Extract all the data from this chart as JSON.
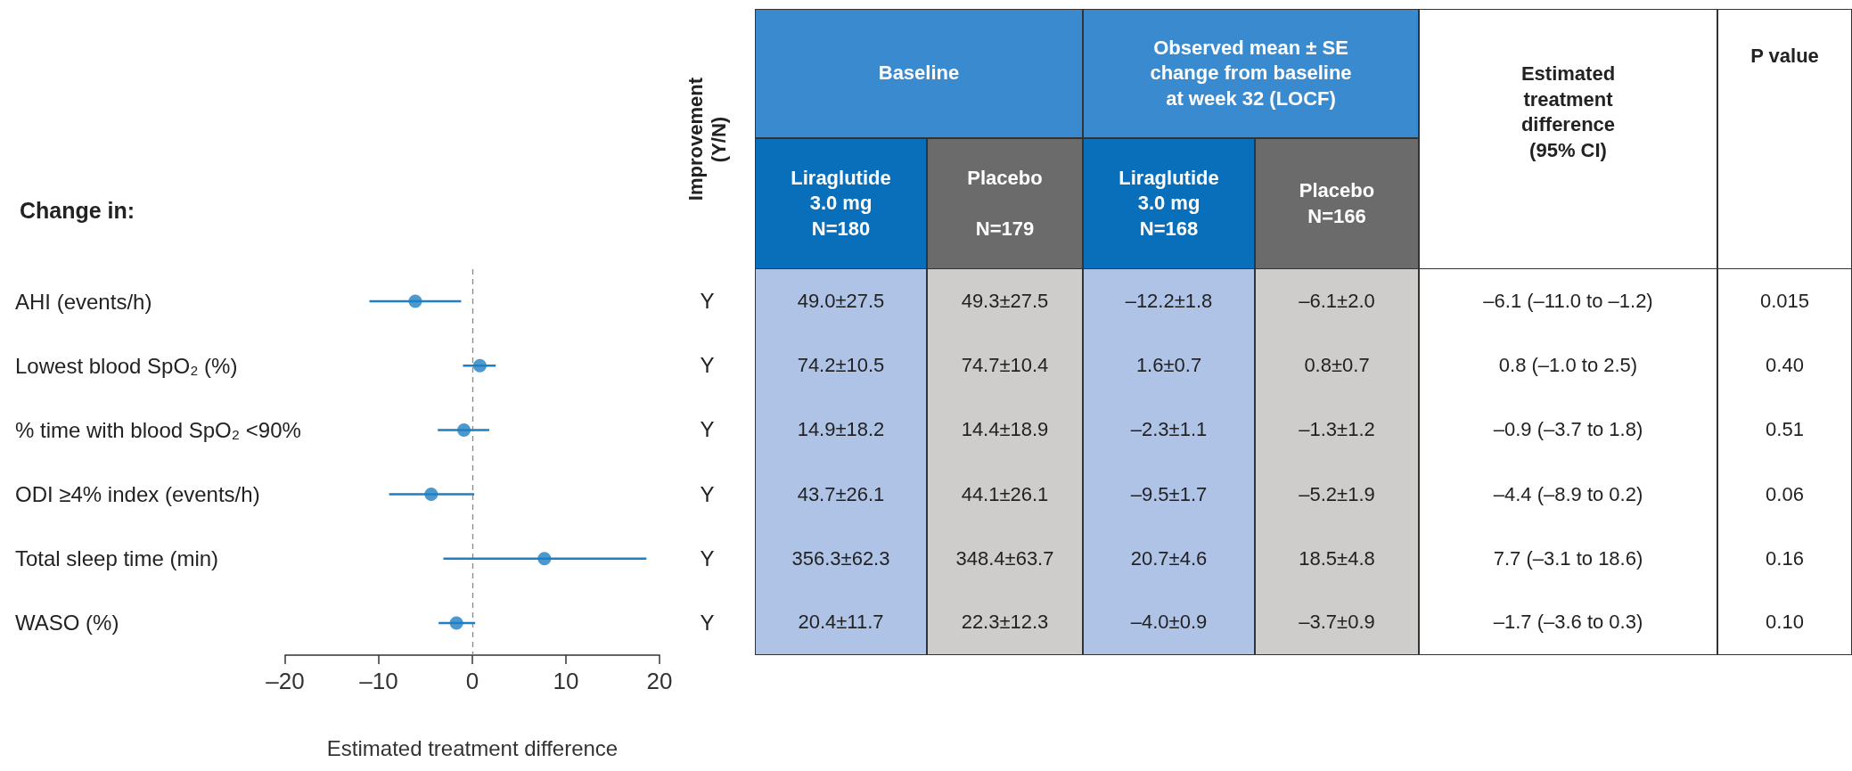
{
  "chart_data": [
    {
      "type": "scatter",
      "orientation": "horizontal",
      "title": "Change in:",
      "xlabel": "Estimated treatment difference",
      "categories": [
        "AHI (events/h)",
        "Lowest blood SpO₂ (%)",
        "% time with blood SpO₂ <90%",
        "ODI ≥4% index (events/h)",
        "Total sleep time (min)",
        "WASO (%)"
      ],
      "values": [
        -6.1,
        0.8,
        -0.9,
        -4.4,
        7.7,
        -1.7
      ],
      "errors": [
        [
          -11.0,
          -1.2
        ],
        [
          -1.0,
          2.5
        ],
        [
          -3.7,
          1.8
        ],
        [
          -8.9,
          0.2
        ],
        [
          -3.1,
          18.6
        ],
        [
          -3.6,
          0.3
        ]
      ],
      "color": "#1f7fc4",
      "marker": "circle",
      "grid": false,
      "xlim": [
        -20,
        20
      ],
      "xticks": [
        {
          "value": -20,
          "label": "–20"
        },
        {
          "value": -10,
          "label": "–10"
        },
        0,
        10,
        20
      ],
      "ref_lines": [
        {
          "axis": "x",
          "value": 0,
          "color": "#888888",
          "line_style": "dashed"
        }
      ]
    },
    {
      "type": "other",
      "annotations": [
        "Improvement\n(Y/N)",
        "Baseline",
        "Observed mean ± SE\nchange from baseline\nat week 32 (LOCF)",
        "Estimated\ntreatment\ndifference\n(95% CI)",
        "P value",
        "Liraglutide\n3.0 mg\nN=180",
        "Placebo\n\nN=179",
        "Liraglutide\n3.0 mg\nN=168",
        "Placebo\nN=166",
        "Y",
        "49.0±27.5",
        "49.3±27.5",
        "–12.2±1.8",
        "–6.1±2.0",
        "–6.1 (–11.0 to –1.2)",
        "0.015",
        "Y",
        "74.2±10.5",
        "74.7±10.4",
        "1.6±0.7",
        "0.8±0.7",
        "0.8 (–1.0 to 2.5)",
        "0.40",
        "Y",
        "14.9±18.2",
        "14.4±18.9",
        "–2.3±1.1",
        "–1.3±1.2",
        "–0.9 (–3.7 to 1.8)",
        "0.51",
        "Y",
        "43.7±26.1",
        "44.1±26.1",
        "–9.5±1.7",
        "–5.2±1.9",
        "–4.4 (–8.9 to 0.2)",
        "0.06",
        "Y",
        "356.3±62.3",
        "348.4±63.7",
        "20.7±4.6",
        "18.5±4.8",
        "7.7 (–3.1 to 18.6)",
        "0.16",
        "Y",
        "20.4±11.7",
        "22.3±12.3",
        "–4.0±0.9",
        "–3.7±0.9",
        "–1.7 (–3.6 to 0.3)",
        "0.10"
      ]
    }
  ]
}
